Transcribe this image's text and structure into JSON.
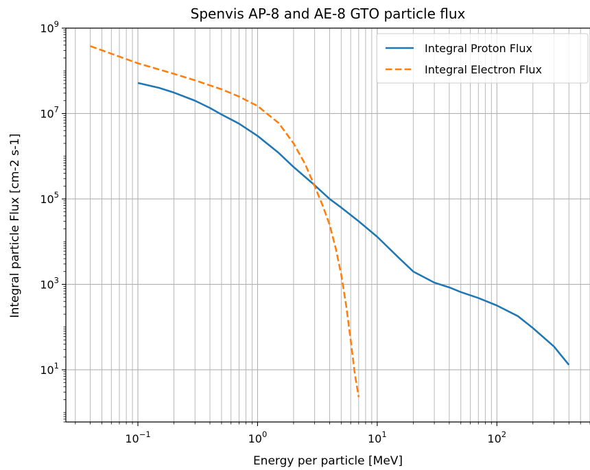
{
  "chart_data": {
    "type": "line",
    "title": "Spenvis AP-8 and AE-8 GTO particle flux",
    "xlabel": "Energy per particle [MeV]",
    "ylabel": "Integral particle Flux [cm-2 s-1]",
    "xscale": "log",
    "yscale": "log",
    "xlim": [
      0.025,
      600
    ],
    "ylim": [
      0.6,
      1000000000
    ],
    "grid": true,
    "legend_position": "top-right",
    "x_ticks": [
      {
        "value": 0.1,
        "base": "10",
        "exp": "−1"
      },
      {
        "value": 1,
        "base": "10",
        "exp": "0"
      },
      {
        "value": 10,
        "base": "10",
        "exp": "1"
      },
      {
        "value": 100,
        "base": "10",
        "exp": "2"
      }
    ],
    "y_ticks": [
      {
        "value": 10,
        "base": "10",
        "exp": "1"
      },
      {
        "value": 1000,
        "base": "10",
        "exp": "3"
      },
      {
        "value": 100000,
        "base": "10",
        "exp": "5"
      },
      {
        "value": 10000000,
        "base": "10",
        "exp": "7"
      },
      {
        "value": 1000000000,
        "base": "10",
        "exp": "9"
      }
    ],
    "series": [
      {
        "name": "Integral Proton Flux",
        "color": "#1f77b4",
        "linestyle": "solid",
        "x": [
          0.1,
          0.15,
          0.2,
          0.3,
          0.4,
          0.5,
          0.7,
          1.0,
          1.5,
          2.0,
          3.0,
          4.0,
          5.0,
          7.0,
          10.0,
          15.0,
          20.0,
          30.0,
          40.0,
          50.0,
          70.0,
          100.0,
          150.0,
          200.0,
          300.0,
          400.0
        ],
        "y": [
          52000000,
          40000000,
          31000000,
          20000000,
          13500000,
          9500000,
          5800000,
          3000000,
          1200000,
          560000,
          210000,
          100000,
          63000,
          30000,
          13000,
          4300,
          2000,
          1100,
          850,
          660,
          480,
          320,
          180,
          95,
          35,
          13
        ]
      },
      {
        "name": "Integral Electron Flux",
        "color": "#ff7f0e",
        "linestyle": "dashed",
        "x": [
          0.04,
          0.1,
          0.2,
          0.3,
          0.5,
          0.7,
          1.0,
          1.5,
          2.0,
          2.5,
          3.0,
          3.5,
          4.0,
          4.5,
          5.0,
          5.5,
          6.0,
          6.5,
          7.0
        ],
        "y": [
          380000000,
          150000000,
          85000000,
          60000000,
          37000000,
          25000000,
          15000000,
          6000000,
          2000000,
          650000,
          200000,
          70000,
          25000,
          7000,
          1700,
          320,
          50,
          8,
          2.3
        ]
      }
    ]
  }
}
